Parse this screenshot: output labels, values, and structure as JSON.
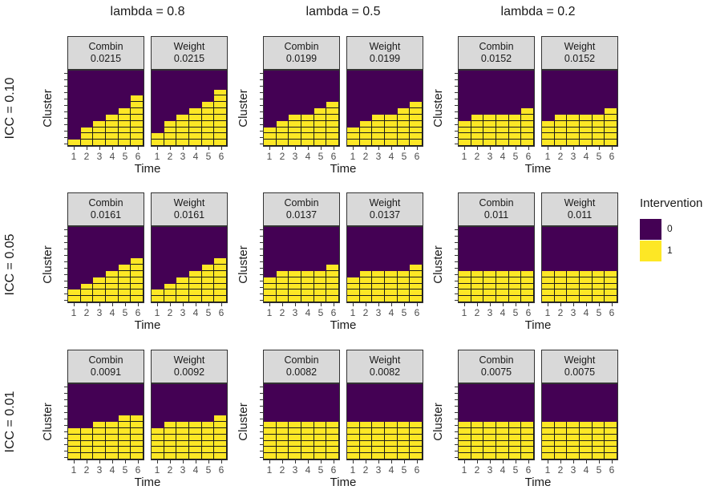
{
  "chart_data": {
    "type": "heatmap",
    "column_titles": [
      "lambda = 0.8",
      "lambda = 0.5",
      "lambda = 0.2"
    ],
    "row_titles": [
      "ICC = 0.10",
      "ICC = 0.05",
      "ICC = 0.01"
    ],
    "xlabel": "Time",
    "ylabel": "Cluster",
    "x_ticks": [
      "1",
      "2",
      "3",
      "4",
      "5",
      "6"
    ],
    "n_clusters": 12,
    "legend": {
      "title": "Intervention",
      "entries": [
        {
          "label": "0",
          "color": "#440154"
        },
        {
          "label": "1",
          "color": "#FDE725"
        }
      ]
    },
    "panels": [
      {
        "row": 0,
        "col": 0,
        "design": "Combin",
        "value": "0.0215",
        "treated_clusters_by_time": [
          1,
          3,
          4,
          5,
          6,
          8
        ]
      },
      {
        "row": 0,
        "col": 0,
        "design": "Weight",
        "value": "0.0215",
        "treated_clusters_by_time": [
          2,
          4,
          5,
          6,
          7,
          9
        ]
      },
      {
        "row": 0,
        "col": 1,
        "design": "Combin",
        "value": "0.0199",
        "treated_clusters_by_time": [
          3,
          4,
          5,
          5,
          6,
          7
        ]
      },
      {
        "row": 0,
        "col": 1,
        "design": "Weight",
        "value": "0.0199",
        "treated_clusters_by_time": [
          3,
          4,
          5,
          5,
          6,
          7
        ]
      },
      {
        "row": 0,
        "col": 2,
        "design": "Combin",
        "value": "0.0152",
        "treated_clusters_by_time": [
          4,
          5,
          5,
          5,
          5,
          6
        ]
      },
      {
        "row": 0,
        "col": 2,
        "design": "Weight",
        "value": "0.0152",
        "treated_clusters_by_time": [
          4,
          5,
          5,
          5,
          5,
          6
        ]
      },
      {
        "row": 1,
        "col": 0,
        "design": "Combin",
        "value": "0.0161",
        "treated_clusters_by_time": [
          2,
          3,
          4,
          5,
          6,
          7
        ]
      },
      {
        "row": 1,
        "col": 0,
        "design": "Weight",
        "value": "0.0161",
        "treated_clusters_by_time": [
          2,
          3,
          4,
          5,
          6,
          7
        ]
      },
      {
        "row": 1,
        "col": 1,
        "design": "Combin",
        "value": "0.0137",
        "treated_clusters_by_time": [
          4,
          5,
          5,
          5,
          5,
          6
        ]
      },
      {
        "row": 1,
        "col": 1,
        "design": "Weight",
        "value": "0.0137",
        "treated_clusters_by_time": [
          4,
          5,
          5,
          5,
          5,
          6
        ]
      },
      {
        "row": 1,
        "col": 2,
        "design": "Combin",
        "value": "0.011",
        "treated_clusters_by_time": [
          5,
          5,
          5,
          5,
          5,
          5
        ]
      },
      {
        "row": 1,
        "col": 2,
        "design": "Weight",
        "value": "0.011",
        "treated_clusters_by_time": [
          5,
          5,
          5,
          5,
          5,
          5
        ]
      },
      {
        "row": 2,
        "col": 0,
        "design": "Combin",
        "value": "0.0091",
        "treated_clusters_by_time": [
          5,
          5,
          6,
          6,
          7,
          7
        ]
      },
      {
        "row": 2,
        "col": 0,
        "design": "Weight",
        "value": "0.0092",
        "treated_clusters_by_time": [
          5,
          6,
          6,
          6,
          6,
          7
        ]
      },
      {
        "row": 2,
        "col": 1,
        "design": "Combin",
        "value": "0.0082",
        "treated_clusters_by_time": [
          6,
          6,
          6,
          6,
          6,
          6
        ]
      },
      {
        "row": 2,
        "col": 1,
        "design": "Weight",
        "value": "0.0082",
        "treated_clusters_by_time": [
          6,
          6,
          6,
          6,
          6,
          6
        ]
      },
      {
        "row": 2,
        "col": 2,
        "design": "Combin",
        "value": "0.0075",
        "treated_clusters_by_time": [
          6,
          6,
          6,
          6,
          6,
          6
        ]
      },
      {
        "row": 2,
        "col": 2,
        "design": "Weight",
        "value": "0.0075",
        "treated_clusters_by_time": [
          6,
          6,
          6,
          6,
          6,
          6
        ]
      }
    ]
  }
}
